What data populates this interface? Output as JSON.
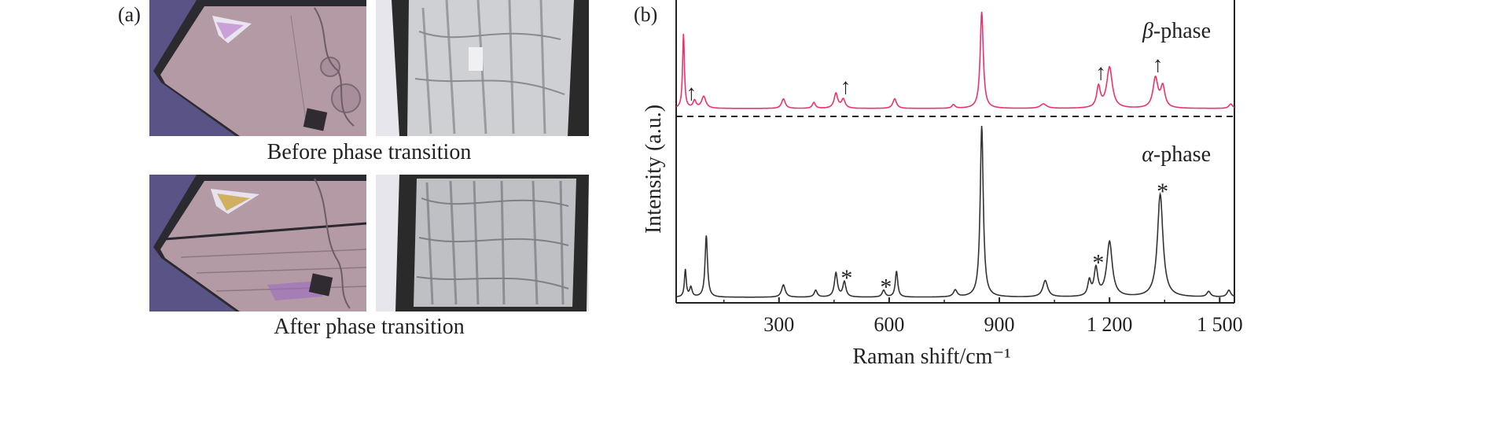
{
  "panel_a": {
    "label": "(a)",
    "caption_before": "Before phase transition",
    "caption_after": "After phase transition"
  },
  "panel_b": {
    "label": "(b)"
  },
  "colors": {
    "beta_line": "#e8346a",
    "alpha_line": "#333333",
    "crystal_pink": "#b79aa5",
    "background_purple": "#5b5488",
    "crystal_frame": "#2a2a2a",
    "crystal_white": "#d9dadb"
  },
  "chart_data": {
    "type": "line",
    "xlabel": "Raman shift/cm⁻¹",
    "ylabel": "Intensity (a.u.)",
    "xlim": [
      20,
      1540
    ],
    "x_ticks": [
      300,
      600,
      900,
      1200,
      1500
    ],
    "x_tick_labels": [
      "300",
      "600",
      "900",
      "1 200",
      "1 500"
    ],
    "y_ticks_shown": false,
    "divider": "dashed horizontal line between the two spectra",
    "series": [
      {
        "name": "β-phase",
        "label_symbol": "β",
        "label_suffix": "-phase",
        "color": "#e8346a",
        "baseline": 0,
        "peaks": [
          {
            "x": 40,
            "h": 100,
            "w": 3
          },
          {
            "x": 70,
            "h": 10,
            "w": 5
          },
          {
            "x": 95,
            "h": 16,
            "w": 7
          },
          {
            "x": 312,
            "h": 13,
            "w": 6
          },
          {
            "x": 395,
            "h": 8,
            "w": 5
          },
          {
            "x": 455,
            "h": 20,
            "w": 6
          },
          {
            "x": 475,
            "h": 12,
            "w": 6
          },
          {
            "x": 615,
            "h": 13,
            "w": 6
          },
          {
            "x": 775,
            "h": 5,
            "w": 5
          },
          {
            "x": 852,
            "h": 130,
            "w": 5
          },
          {
            "x": 1020,
            "h": 6,
            "w": 10
          },
          {
            "x": 1170,
            "h": 28,
            "w": 6
          },
          {
            "x": 1200,
            "h": 55,
            "w": 9
          },
          {
            "x": 1325,
            "h": 40,
            "w": 8
          },
          {
            "x": 1345,
            "h": 28,
            "w": 7
          },
          {
            "x": 1530,
            "h": 6,
            "w": 6
          }
        ],
        "annotations": [
          {
            "x": 55,
            "symbol": "↑"
          },
          {
            "x": 475,
            "symbol": "↑"
          },
          {
            "x": 1170,
            "symbol": "↑"
          },
          {
            "x": 1325,
            "symbol": "↑"
          }
        ]
      },
      {
        "name": "α-phase",
        "label_symbol": "α",
        "label_suffix": "-phase",
        "color": "#333333",
        "baseline": 0,
        "peaks": [
          {
            "x": 45,
            "h": 40,
            "w": 3
          },
          {
            "x": 60,
            "h": 14,
            "w": 4
          },
          {
            "x": 102,
            "h": 90,
            "w": 4
          },
          {
            "x": 312,
            "h": 18,
            "w": 6
          },
          {
            "x": 400,
            "h": 10,
            "w": 5
          },
          {
            "x": 455,
            "h": 35,
            "w": 5
          },
          {
            "x": 478,
            "h": 22,
            "w": 5
          },
          {
            "x": 585,
            "h": 10,
            "w": 5
          },
          {
            "x": 620,
            "h": 38,
            "w": 4
          },
          {
            "x": 780,
            "h": 10,
            "w": 6
          },
          {
            "x": 852,
            "h": 250,
            "w": 5
          },
          {
            "x": 1025,
            "h": 24,
            "w": 8
          },
          {
            "x": 1145,
            "h": 22,
            "w": 5
          },
          {
            "x": 1163,
            "h": 40,
            "w": 6
          },
          {
            "x": 1200,
            "h": 80,
            "w": 9
          },
          {
            "x": 1338,
            "h": 150,
            "w": 9
          },
          {
            "x": 1470,
            "h": 8,
            "w": 6
          },
          {
            "x": 1525,
            "h": 10,
            "w": 6
          }
        ],
        "annotations": [
          {
            "x": 478,
            "symbol": "*"
          },
          {
            "x": 585,
            "symbol": "*"
          },
          {
            "x": 1163,
            "symbol": "*"
          },
          {
            "x": 1338,
            "symbol": "*"
          }
        ]
      }
    ]
  }
}
